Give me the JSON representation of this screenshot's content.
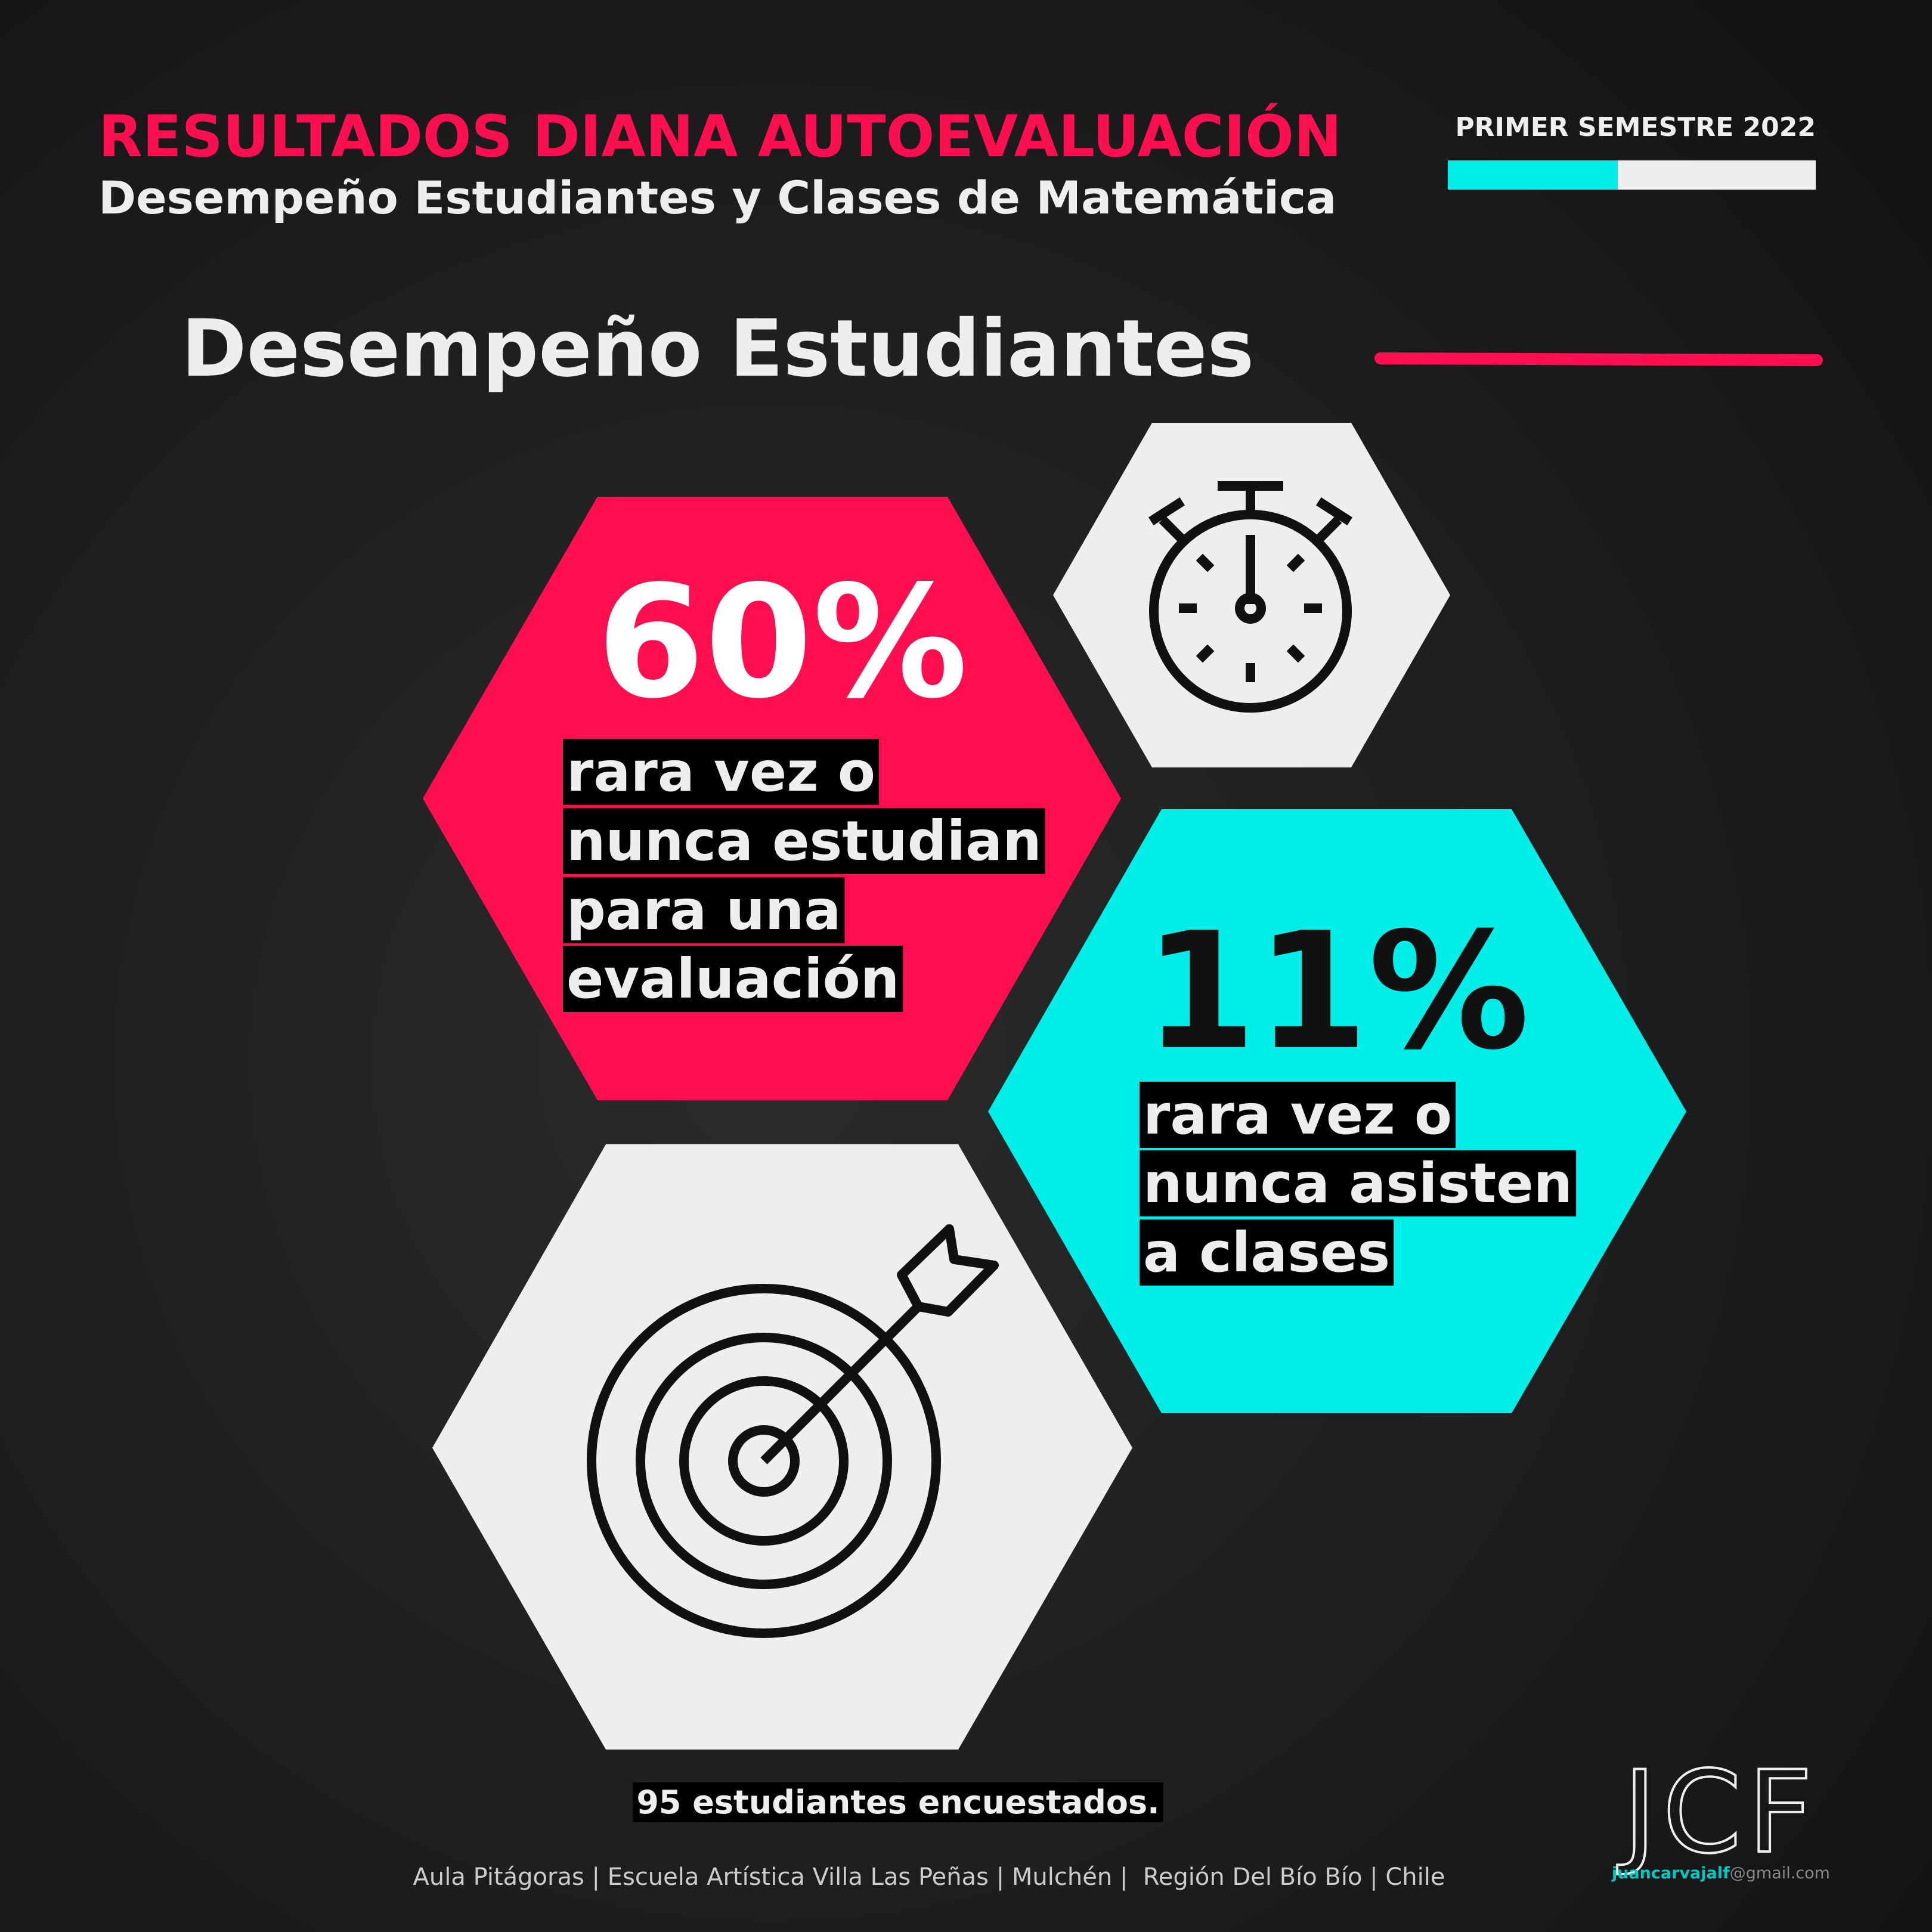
{
  "header": {
    "title": "RESULTADOS DIANA AUTOEVALUACIÓN",
    "subtitle": "Desempeño Estudiantes y Clases de Matemática",
    "period": "PRIMER SEMESTRE 2022"
  },
  "section": {
    "title": "Desempeño Estudiantes"
  },
  "stats": [
    {
      "value": "60%",
      "lines": [
        "rara vez o",
        "nunca estudian",
        "para una",
        "evaluación"
      ]
    },
    {
      "value": "11%",
      "lines": [
        "rara vez o",
        "nunca asisten",
        "a clases"
      ]
    }
  ],
  "note": "95 estudiantes encuestados.",
  "footer": "Aula Pitágoras | Escuela Artística Villa Las Peñas | Mulchén |  Región Del Bío Bío | Chile",
  "logo": {
    "mark": "JCF",
    "email_user": "juancarvajalf",
    "email_domain": "@gmail.com"
  }
}
